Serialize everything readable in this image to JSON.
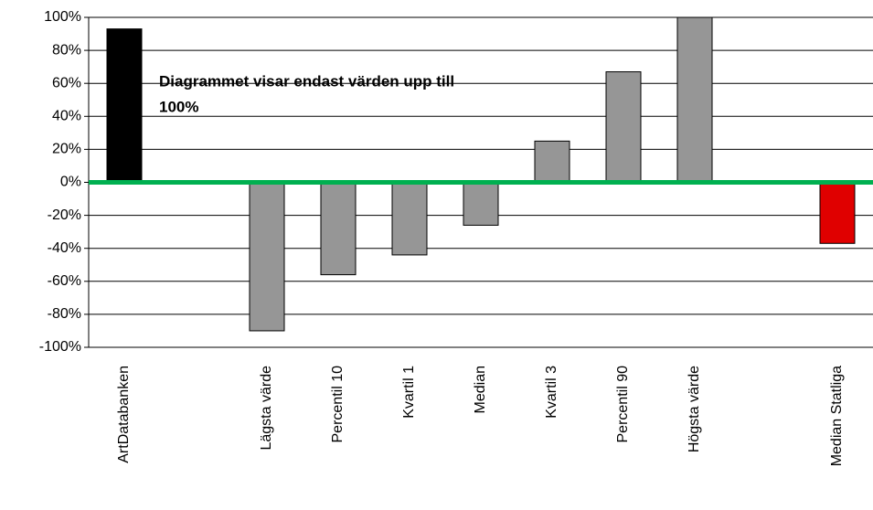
{
  "chart_data": {
    "type": "bar",
    "categories": [
      "ArtDatabanken",
      null,
      "Lägsta värde",
      "Percentil 10",
      "Kvartil 1",
      "Median",
      "Kvartil 3",
      "Percentil 90",
      "Högsta värde",
      null,
      "Median Statliga"
    ],
    "values": [
      93,
      null,
      -90,
      -56,
      -44,
      -26,
      25,
      67,
      100,
      null,
      -37
    ],
    "colors": [
      "#000000",
      null,
      "#969696",
      "#969696",
      "#969696",
      "#969696",
      "#969696",
      "#969696",
      "#969696",
      null,
      "#e00000"
    ],
    "ylim": [
      -100,
      100
    ],
    "yticks": [
      {
        "value": -100,
        "label": "-100%"
      },
      {
        "value": -80,
        "label": "-80%"
      },
      {
        "value": -60,
        "label": "-60%"
      },
      {
        "value": -40,
        "label": "-40%"
      },
      {
        "value": -20,
        "label": "-20%"
      },
      {
        "value": 0,
        "label": "0%"
      },
      {
        "value": 20,
        "label": "20%"
      },
      {
        "value": 40,
        "label": "40%"
      },
      {
        "value": 60,
        "label": "60%"
      },
      {
        "value": 80,
        "label": "80%"
      },
      {
        "value": 100,
        "label": "100%"
      }
    ],
    "grid": true,
    "zero_line_color": "#00b050",
    "annotation": [
      "Diagrammet visar endast värden upp till",
      "100%"
    ]
  }
}
